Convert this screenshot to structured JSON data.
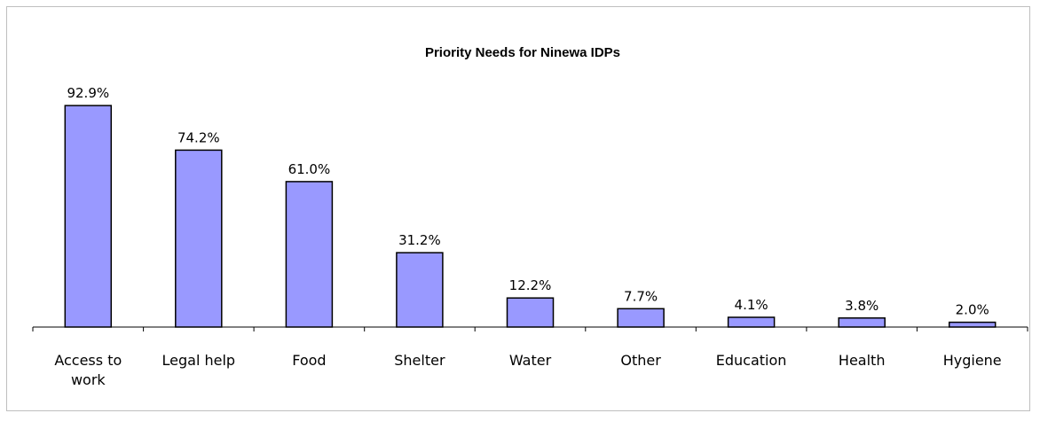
{
  "chart_data": {
    "type": "bar",
    "title": "Priority Needs for Ninewa IDPs",
    "xlabel": "",
    "ylabel": "",
    "categories": [
      "Access to work",
      "Legal help",
      "Food",
      "Shelter",
      "Water",
      "Other",
      "Education",
      "Health",
      "Hygiene"
    ],
    "category_labels": [
      [
        "Access to",
        "work"
      ],
      [
        "Legal help"
      ],
      [
        "Food"
      ],
      [
        "Shelter"
      ],
      [
        "Water"
      ],
      [
        "Other"
      ],
      [
        "Education"
      ],
      [
        "Health"
      ],
      [
        "Hygiene"
      ]
    ],
    "values": [
      92.9,
      74.2,
      61.0,
      31.2,
      12.2,
      7.7,
      4.1,
      3.8,
      2.0
    ],
    "data_labels": [
      "92.9%",
      "74.2%",
      "61.0%",
      "31.2%",
      "12.2%",
      "7.7%",
      "4.1%",
      "3.8%",
      "2.0%"
    ],
    "ylim": [
      0,
      100
    ],
    "grid": false,
    "legend": "none",
    "bar_color": "#9999ff",
    "bar_edge_color": "#000000"
  }
}
